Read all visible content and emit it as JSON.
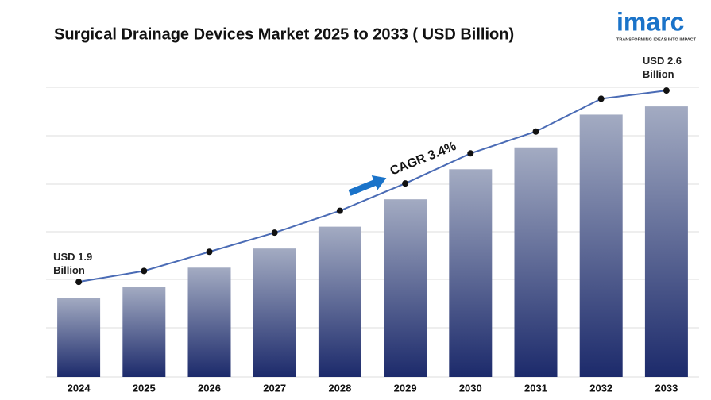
{
  "chart_data": {
    "type": "bar",
    "title": "Surgical Drainage Devices Market 2025 to 2033 ( USD Billion)",
    "categories": [
      "2024",
      "2025",
      "2026",
      "2027",
      "2028",
      "2029",
      "2030",
      "2031",
      "2032",
      "2033"
    ],
    "values": [
      1.9,
      1.94,
      2.01,
      2.08,
      2.16,
      2.26,
      2.37,
      2.45,
      2.57,
      2.6
    ],
    "value_labels": [
      "USD 1.9 Billion",
      null,
      null,
      null,
      null,
      null,
      null,
      null,
      null,
      "USD 2.6 Billion"
    ],
    "color": "#1c2a6b",
    "line_color": "#4a6bb5",
    "ylim": [
      1.61,
      2.67
    ],
    "grid": true,
    "annotation": "CAGR  3.4%"
  },
  "logo": {
    "name": "imarc",
    "tagline": "TRANSFORMING IDEAS INTO IMPACT"
  }
}
